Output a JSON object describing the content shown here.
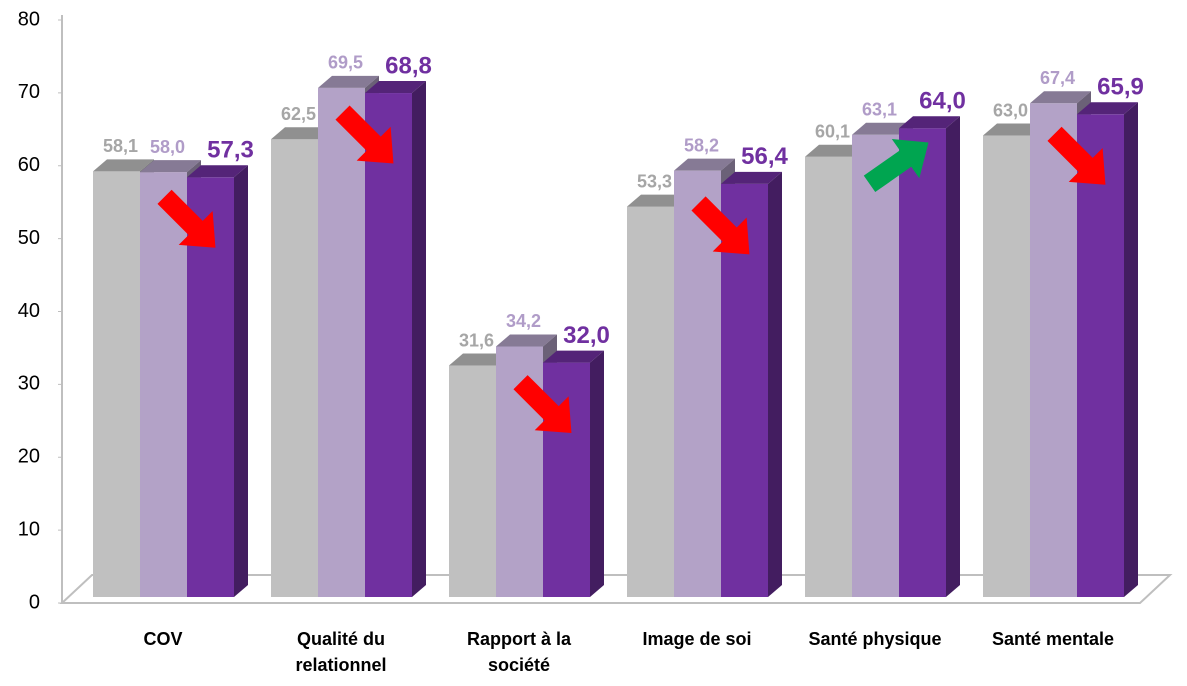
{
  "chart_data": {
    "type": "bar3d",
    "categories": [
      "COV",
      "Qualité du relationnel",
      "Rapport à la société",
      "Image de soi",
      "Santé physique",
      "Santé mentale"
    ],
    "series": [
      {
        "color": "#c0c0c0",
        "values": [
          58.1,
          62.5,
          31.6,
          53.3,
          60.1,
          63.0
        ],
        "value_labels": [
          "58,1",
          "62,5",
          "31,6",
          "53,3",
          "60,1",
          "63,0"
        ],
        "label_color": "#a6a6a6"
      },
      {
        "color": "#b3a2c7",
        "values": [
          58.0,
          69.5,
          34.2,
          58.2,
          63.1,
          67.4
        ],
        "value_labels": [
          "58,0",
          "69,5",
          "34,2",
          "58,2",
          "63,1",
          "67,4"
        ],
        "label_color": "#b09cc8"
      },
      {
        "color": "#7030a0",
        "values": [
          57.3,
          68.8,
          32.0,
          56.4,
          64.0,
          65.9
        ],
        "value_labels": [
          "57,3",
          "68,8",
          "32,0",
          "56,4",
          "64,0",
          "65,9"
        ],
        "label_color": "#7030a0"
      }
    ],
    "ylim": [
      0,
      80
    ],
    "yticks": [
      0,
      10,
      20,
      30,
      40,
      50,
      60,
      70,
      80
    ]
  }
}
